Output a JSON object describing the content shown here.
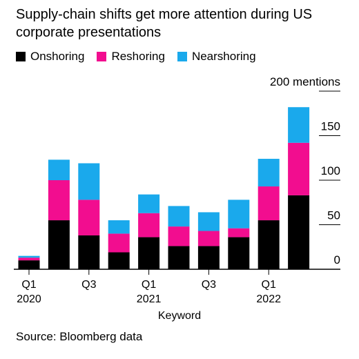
{
  "title": "Supply-chain shifts get more attention during US corporate presentations",
  "source": "Source: Bloomberg data",
  "colors": {
    "Onshoring": "#000000",
    "Reshoring": "#f20d8f",
    "Nearshoring": "#1aa9ec",
    "grid": "#000000"
  },
  "chart_data": {
    "type": "bar",
    "stacked": true,
    "categories": [
      "Q1 2020",
      "Q2 2020",
      "Q3 2020",
      "Q4 2020",
      "Q1 2021",
      "Q2 2021",
      "Q3 2021",
      "Q4 2021",
      "Q1 2022",
      "Q2 2022"
    ],
    "series": [
      {
        "name": "Onshoring",
        "values": [
          10,
          55,
          38,
          19,
          36,
          26,
          26,
          36,
          55,
          83
        ]
      },
      {
        "name": "Reshoring",
        "values": [
          3,
          45,
          40,
          21,
          27,
          22,
          17,
          10,
          38,
          59
        ]
      },
      {
        "name": "Nearshoring",
        "values": [
          2,
          23,
          41,
          15,
          21,
          23,
          21,
          32,
          31,
          40
        ]
      }
    ],
    "xlabel": "Keyword",
    "ylabel": "",
    "ylim": [
      0,
      200
    ],
    "yticks": [
      0,
      50,
      100,
      150,
      200
    ],
    "ytick_labels": [
      "0",
      "50",
      "100",
      "150",
      "200 mentions"
    ],
    "xtick_labels": [
      {
        "index": 0,
        "label": "Q1",
        "year": "2020"
      },
      {
        "index": 2,
        "label": "Q3",
        "year": ""
      },
      {
        "index": 4,
        "label": "Q1",
        "year": "2021"
      },
      {
        "index": 6,
        "label": "Q3",
        "year": ""
      },
      {
        "index": 8,
        "label": "Q1",
        "year": "2022"
      }
    ],
    "legend_position": "top-left",
    "grid": true
  }
}
